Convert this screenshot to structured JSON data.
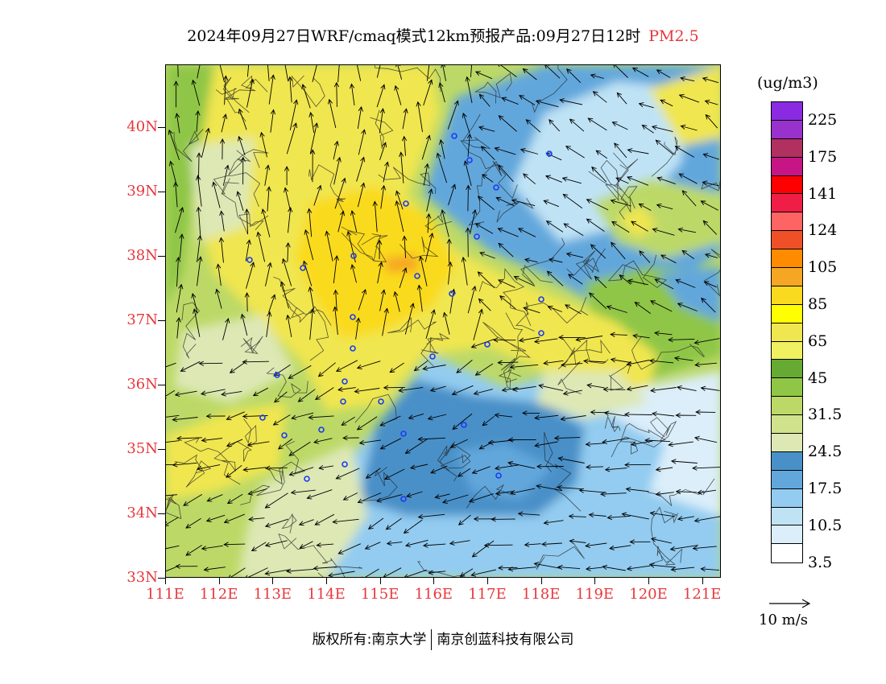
{
  "title": {
    "main": "2024年09月27日WRF/cmaq模式12km预报产品:09月27日12时",
    "variable": "PM2.5"
  },
  "map": {
    "lat_labels": [
      "40N",
      "39N",
      "38N",
      "37N",
      "36N",
      "35N",
      "34N",
      "33N"
    ],
    "lon_labels": [
      "111E",
      "112E",
      "113E",
      "114E",
      "115E",
      "116E",
      "117E",
      "118E",
      "119E",
      "120E",
      "121E"
    ],
    "lat_range": [
      33,
      40.98
    ],
    "lon_range": [
      111,
      121.35
    ],
    "label_color": "#e8373c"
  },
  "legend": {
    "unit": "(ug/m3)",
    "labels": [
      "225",
      "175",
      "141",
      "124",
      "105",
      "85",
      "65",
      "45",
      "31.5",
      "24.5",
      "17.5",
      "10.5",
      "3.5"
    ],
    "colors": [
      "#8a2be2",
      "#9932cc",
      "#b03060",
      "#c71585",
      "#ff0000",
      "#f01e46",
      "#ff6464",
      "#f05028",
      "#ff8c00",
      "#f5a623",
      "#fada1e",
      "#ffff00",
      "#f0e650",
      "#f0f060",
      "#66aa33",
      "#8fc646",
      "#bcd967",
      "#d0e38c",
      "#dde8b5",
      "#4a90c8",
      "#62a7dc",
      "#93ccf0",
      "#bfe3f5",
      "#dbeefa",
      "#ffffff"
    ]
  },
  "vector_reference": {
    "label": "10 m/s"
  },
  "footer": {
    "copyright": "版权所有:南京大学",
    "company": "南京创蓝科技有限公司"
  },
  "colors": {
    "light_blue": "#bfe3f5",
    "mid_blue": "#93ccf0",
    "blue": "#62a7dc",
    "dark_blue": "#4a90c8",
    "pale_green": "#dde8b5",
    "light_green": "#bcd967",
    "green": "#8fc646",
    "dark_green": "#66aa33",
    "yellow": "#f0e650",
    "bright_yellow": "#fada1e",
    "orange": "#f5a623",
    "station": "#1a3cf0"
  }
}
